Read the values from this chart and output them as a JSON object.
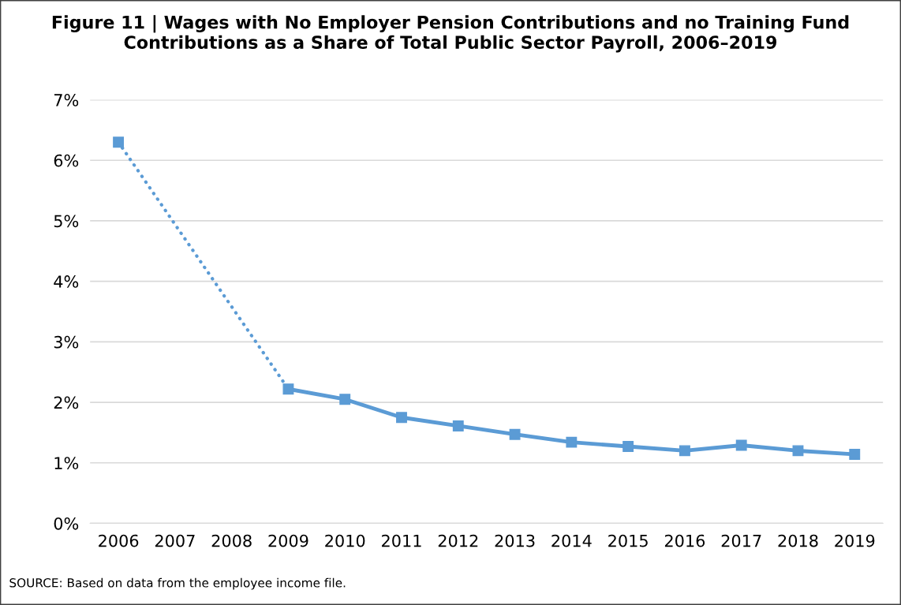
{
  "chart_data": {
    "type": "line",
    "title": "Figure 11 | Wages with No Employer Pension Contributions and no Training Fund Contributions as a Share of Total Public Sector Payroll, 2006–2019",
    "categories": [
      "2006",
      "2007",
      "2008",
      "2009",
      "2010",
      "2011",
      "2012",
      "2013",
      "2014",
      "2015",
      "2016",
      "2017",
      "2018",
      "2019"
    ],
    "series": [
      {
        "color": "#5b9bd5",
        "line_style": "dotted",
        "marker": "none",
        "values": [
          6.3,
          null,
          null,
          2.22,
          null,
          null,
          null,
          null,
          null,
          null,
          null,
          null,
          null,
          null
        ]
      },
      {
        "color": "#5b9bd5",
        "line_style": "solid",
        "marker": "square",
        "values": [
          6.3,
          null,
          null,
          2.22,
          2.05,
          1.75,
          1.61,
          1.47,
          1.34,
          1.27,
          1.2,
          1.29,
          1.2,
          1.14
        ]
      }
    ],
    "ylim": [
      0,
      7
    ],
    "yticks": [
      {
        "value": 0,
        "label": "0%"
      },
      {
        "value": 1,
        "label": "1%"
      },
      {
        "value": 2,
        "label": "2%"
      },
      {
        "value": 3,
        "label": "3%"
      },
      {
        "value": 4,
        "label": "4%"
      },
      {
        "value": 5,
        "label": "5%"
      },
      {
        "value": 6,
        "label": "6%"
      },
      {
        "value": 7,
        "label": "7%"
      }
    ],
    "grid": "y",
    "annotations": [
      "SOURCE: Based on data from the employee income file."
    ]
  }
}
